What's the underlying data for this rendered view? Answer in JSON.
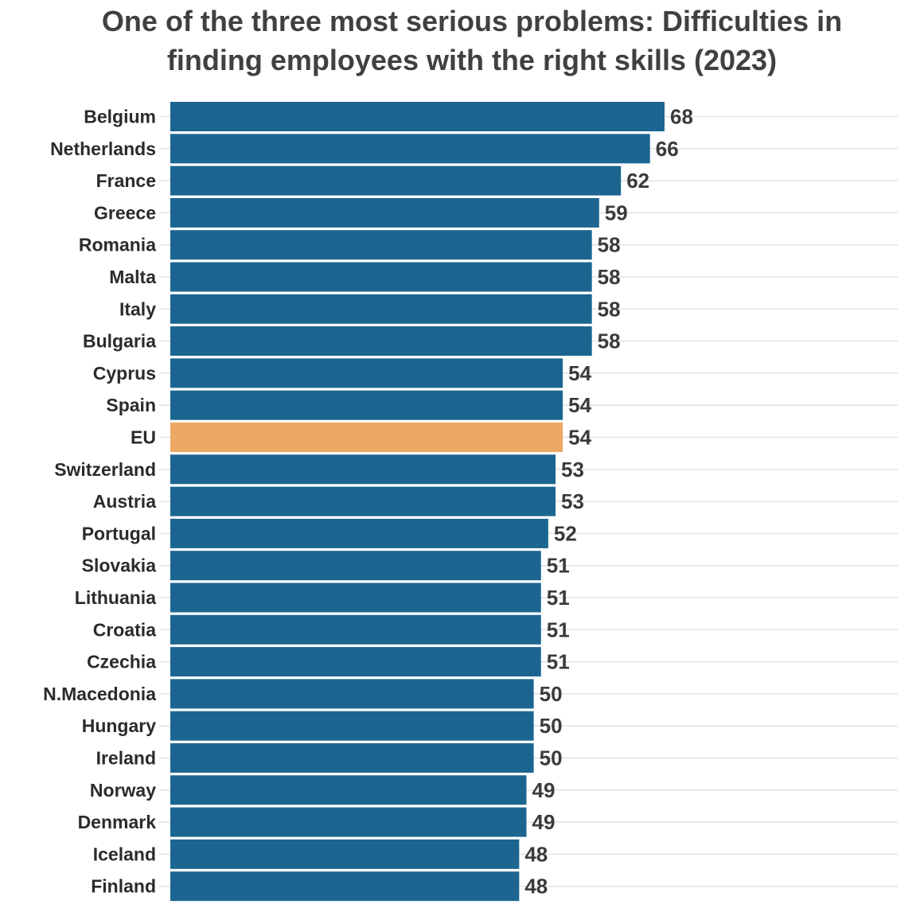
{
  "chart_data": {
    "type": "bar",
    "orientation": "horizontal",
    "title": "One of the three most serious problems: Difficulties in finding employees with the right skills (2023)",
    "categories": [
      "Belgium",
      "Netherlands",
      "France",
      "Greece",
      "Romania",
      "Malta",
      "Italy",
      "Bulgaria",
      "Cyprus",
      "Spain",
      "EU",
      "Switzerland",
      "Austria",
      "Portugal",
      "Slovakia",
      "Lithuania",
      "Croatia",
      "Czechia",
      "N.Macedonia",
      "Hungary",
      "Ireland",
      "Norway",
      "Denmark",
      "Iceland",
      "Finland"
    ],
    "values": [
      68,
      66,
      62,
      59,
      58,
      58,
      58,
      58,
      54,
      54,
      54,
      53,
      53,
      52,
      51,
      51,
      51,
      51,
      50,
      50,
      50,
      49,
      49,
      48,
      48
    ],
    "highlight_category": "EU",
    "colors": {
      "bar": "#1c6591",
      "highlight": "#eda865",
      "grid": "#e2e2e2",
      "title": "#404040",
      "label": "#2b2b2b"
    },
    "xlim": [
      0,
      100
    ],
    "grid": true,
    "data_labels": true
  }
}
